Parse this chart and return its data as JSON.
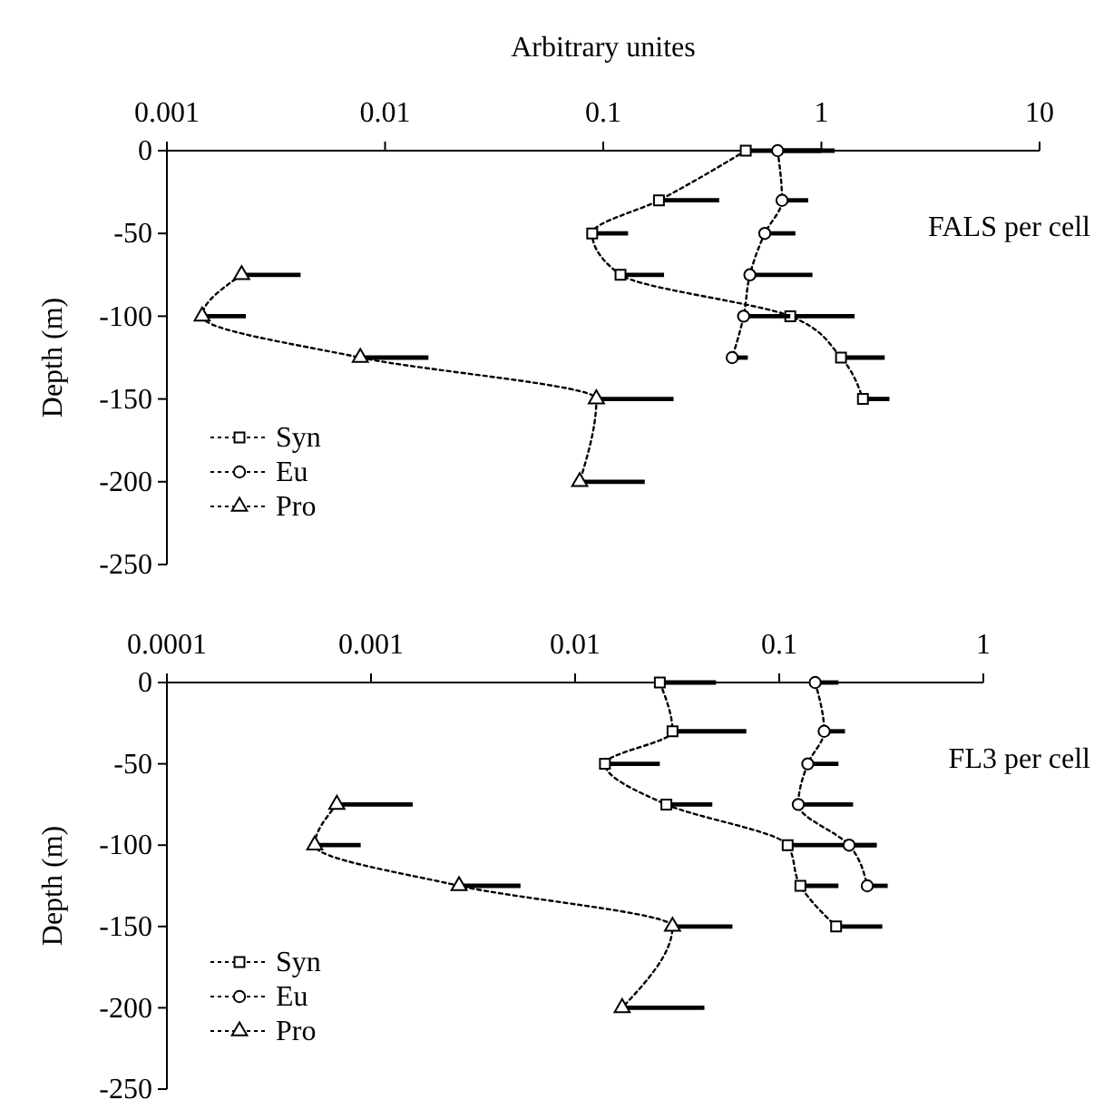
{
  "chart_data": [
    {
      "type": "line",
      "xlabel": "Arbitrary unites",
      "ylabel": "Depth (m)",
      "annotations": [
        "FALS per cell"
      ],
      "log": "x",
      "xlim": [
        0.001,
        10
      ],
      "xticks": [
        0.001,
        0.01,
        0.1,
        1,
        10
      ],
      "ylim": [
        -250,
        0
      ],
      "yticks": [
        -250,
        -200,
        -150,
        -100,
        -50,
        0
      ],
      "legend": "bottom left",
      "line_style": "dotted",
      "grid": false,
      "series": [
        {
          "name": "Syn",
          "color": "#000000",
          "marker": "square",
          "x": [
            0.45,
            0.18,
            0.089,
            0.12,
            0.72,
            1.23,
            1.55
          ],
          "values": [
            0,
            -30,
            -50,
            -75,
            -100,
            -125,
            -150
          ],
          "xerrors": [
            [
              0.45,
              1.15
            ],
            [
              0.18,
              0.34
            ],
            [
              0.089,
              0.13
            ],
            [
              0.12,
              0.19
            ],
            [
              0.72,
              1.42
            ],
            [
              1.23,
              1.95
            ],
            [
              1.55,
              2.05
            ]
          ]
        },
        {
          "name": "Eu",
          "color": "#000000",
          "marker": "circle",
          "x": [
            0.63,
            0.66,
            0.55,
            0.47,
            0.44,
            0.39
          ],
          "values": [
            0,
            -30,
            -50,
            -75,
            -100,
            -125
          ],
          "xerrors": [
            [
              0.63,
              1.0
            ],
            [
              0.66,
              0.87
            ],
            [
              0.55,
              0.76
            ],
            [
              0.47,
              0.91
            ],
            [
              0.44,
              0.72
            ],
            [
              0.39,
              0.46
            ]
          ]
        },
        {
          "name": "Pro",
          "color": "#000000",
          "marker": "triangle",
          "x": [
            0.0022,
            0.00145,
            0.0077,
            0.093,
            0.078
          ],
          "values": [
            -75,
            -100,
            -125,
            -150,
            -200
          ],
          "xerrors": [
            [
              0.0022,
              0.0041
            ],
            [
              0.00145,
              0.0023
            ],
            [
              0.0077,
              0.0158
            ],
            [
              0.093,
              0.21
            ],
            [
              0.078,
              0.155
            ]
          ]
        }
      ]
    },
    {
      "type": "line",
      "ylabel": "Depth (m)",
      "annotations": [
        "FL3 per cell"
      ],
      "log": "x",
      "xlim": [
        0.0001,
        1
      ],
      "xticks": [
        0.0001,
        0.001,
        0.01,
        0.1,
        1
      ],
      "ylim": [
        -250,
        0
      ],
      "yticks": [
        -250,
        -200,
        -150,
        -100,
        -50,
        0
      ],
      "legend": "bottom left",
      "line_style": "dotted",
      "grid": false,
      "series": [
        {
          "name": "Syn",
          "color": "#000000",
          "marker": "square",
          "x": [
            0.026,
            0.03,
            0.014,
            0.028,
            0.11,
            0.127,
            0.19
          ],
          "values": [
            0,
            -30,
            -50,
            -75,
            -100,
            -125,
            -150
          ],
          "xerrors": [
            [
              0.026,
              0.049
            ],
            [
              0.03,
              0.069
            ],
            [
              0.014,
              0.026
            ],
            [
              0.028,
              0.047
            ],
            [
              0.11,
              0.3
            ],
            [
              0.127,
              0.195
            ],
            [
              0.19,
              0.32
            ]
          ]
        },
        {
          "name": "Eu",
          "color": "#000000",
          "marker": "circle",
          "x": [
            0.15,
            0.166,
            0.138,
            0.124,
            0.22,
            0.27
          ],
          "values": [
            0,
            -30,
            -50,
            -75,
            -100,
            -125
          ],
          "xerrors": [
            [
              0.15,
              0.195
            ],
            [
              0.166,
              0.21
            ],
            [
              0.138,
              0.195
            ],
            [
              0.124,
              0.23
            ],
            [
              0.22,
              0.3
            ],
            [
              0.27,
              0.34
            ]
          ]
        },
        {
          "name": "Pro",
          "color": "#000000",
          "marker": "triangle",
          "x": [
            0.00068,
            0.00053,
            0.0027,
            0.03,
            0.017
          ],
          "values": [
            -75,
            -100,
            -125,
            -150,
            -200
          ],
          "xerrors": [
            [
              0.00068,
              0.0016
            ],
            [
              0.00053,
              0.00089
            ],
            [
              0.0027,
              0.0054
            ],
            [
              0.03,
              0.059
            ],
            [
              0.017,
              0.043
            ]
          ]
        }
      ]
    }
  ]
}
